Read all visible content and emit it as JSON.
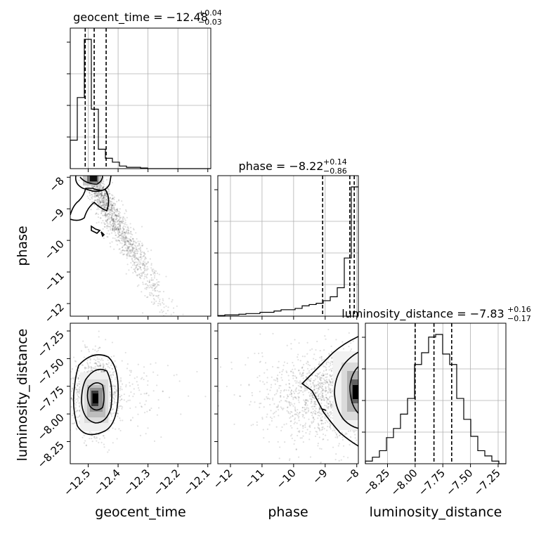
{
  "chart_data": {
    "type": "scatter",
    "kind": "corner",
    "parameters": [
      {
        "name": "geocent_time",
        "label": "geocent_time",
        "title": "geocent_time = −12.48",
        "title_plus": "+0.04",
        "title_minus": "−0.03",
        "range": [
          -12.56,
          -12.09
        ],
        "ticks": [
          -12.5,
          -12.4,
          -12.3,
          -12.2,
          -12.1
        ],
        "tick_labels": [
          "−12.5",
          "−12.4",
          "−12.3",
          "−12.2",
          "−12.1"
        ],
        "quantiles": [
          -12.51,
          -12.48,
          -12.44
        ],
        "hist_edges": [
          -12.56,
          -12.5365,
          -12.513,
          -12.4895,
          -12.466,
          -12.4425,
          -12.419,
          -12.3955,
          -12.372,
          -12.3485,
          -12.325,
          -12.3015,
          -12.278,
          -12.2545,
          -12.231,
          -12.2075,
          -12.184,
          -12.1605,
          -12.137,
          -12.1135,
          -12.09
        ],
        "hist_counts": [
          0.22,
          0.55,
          1.0,
          0.46,
          0.15,
          0.08,
          0.05,
          0.02,
          0.01,
          0.01,
          0.005,
          0,
          0,
          0,
          0,
          0,
          0,
          0,
          0,
          0
        ]
      },
      {
        "name": "phase",
        "label": "phase",
        "title": "phase = −8.22",
        "title_plus": "+0.14",
        "title_minus": "−0.86",
        "range": [
          -12.4,
          -7.95
        ],
        "ticks": [
          -12,
          -11,
          -10,
          -9,
          -8
        ],
        "tick_labels": [
          "−12",
          "−11",
          "−10",
          "−9",
          "−8"
        ],
        "quantiles": [
          -9.08,
          -8.22,
          -8.08
        ],
        "hist_edges": [
          -12.4,
          -12.1775,
          -11.955,
          -11.7325,
          -11.51,
          -11.2875,
          -11.065,
          -10.8425,
          -10.62,
          -10.3975,
          -10.175,
          -9.9525,
          -9.73,
          -9.5075,
          -9.285,
          -9.0625,
          -8.84,
          -8.6175,
          -8.395,
          -8.1725,
          -7.95
        ],
        "hist_counts": [
          0.005,
          0.01,
          0.01,
          0.015,
          0.02,
          0.02,
          0.03,
          0.03,
          0.04,
          0.05,
          0.05,
          0.06,
          0.08,
          0.09,
          0.1,
          0.12,
          0.15,
          0.22,
          0.45,
          1.0
        ]
      },
      {
        "name": "luminosity_distance",
        "label": "luminosity_distance",
        "title": "luminosity_distance = −7.83",
        "title_plus": "+0.16",
        "title_minus": "−0.17",
        "range": [
          -8.45,
          -7.18
        ],
        "ticks": [
          -8.25,
          -8.0,
          -7.75,
          -7.5,
          -7.25
        ],
        "tick_labels": [
          "−8.25",
          "−8.00",
          "−7.75",
          "−7.50",
          "−7.25"
        ],
        "quantiles": [
          -8.0,
          -7.83,
          -7.67
        ],
        "hist_edges": [
          -8.45,
          -8.3865,
          -8.323,
          -8.2595,
          -8.196,
          -8.1325,
          -8.069,
          -8.0055,
          -7.942,
          -7.8785,
          -7.815,
          -7.7515,
          -7.688,
          -7.6245,
          -7.561,
          -7.4975,
          -7.434,
          -7.3705,
          -7.307,
          -7.2435,
          -7.18
        ],
        "hist_counts": [
          0.02,
          0.05,
          0.1,
          0.2,
          0.27,
          0.38,
          0.5,
          0.76,
          0.85,
          0.97,
          0.99,
          0.84,
          0.76,
          0.5,
          0.34,
          0.21,
          0.1,
          0.06,
          0.02,
          0.0
        ]
      }
    ]
  }
}
